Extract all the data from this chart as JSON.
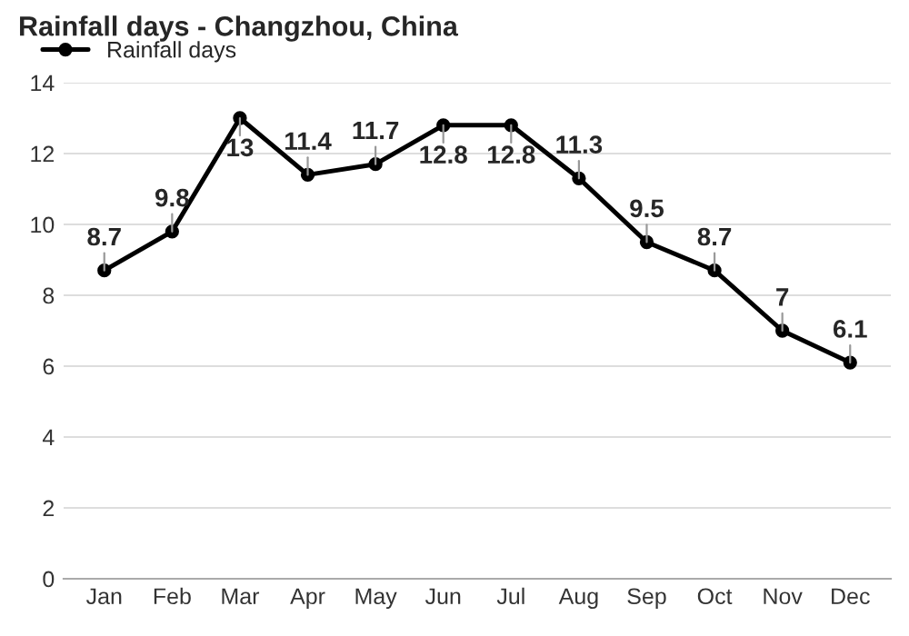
{
  "chart_data": {
    "type": "line",
    "title": "Rainfall days - Changzhou, China",
    "categories": [
      "Jan",
      "Feb",
      "Mar",
      "Apr",
      "May",
      "Jun",
      "Jul",
      "Aug",
      "Sep",
      "Oct",
      "Nov",
      "Dec"
    ],
    "series": [
      {
        "name": "Rainfall days",
        "color": "#000000",
        "values": [
          8.7,
          9.8,
          13,
          11.4,
          11.7,
          12.8,
          12.8,
          11.3,
          9.5,
          8.7,
          7,
          6.1
        ]
      }
    ],
    "ylim": [
      0,
      14
    ],
    "yticks": [
      0,
      2,
      4,
      6,
      8,
      10,
      12,
      14
    ],
    "grid": "y",
    "legend": "top left",
    "marker": "circle",
    "line_style": "solid",
    "data_labels": true
  }
}
